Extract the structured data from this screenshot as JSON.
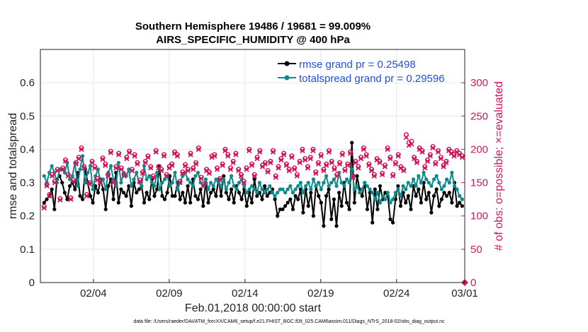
{
  "title_line1": "Southern Hemisphere 19486 / 19681 = 99.009%",
  "title_line2": "AIRS_SPECIFIC_HUMIDITY @ 400 hPa",
  "xlabel": "Feb.01,2018 00:00:00 start",
  "ylabel_left": "rmse and totalspread",
  "ylabel_right": "# of obs: o=possible; ×=evaluated",
  "footer": "data file: /Users/raeder/DAI/ATM_forcXX/CAM6_setup/f.e21.FHIST_BGC.f09_025.CAM6assim.011/Diags_NTrS_2018-02/obs_diag_output.nc",
  "colors": {
    "rmse": "#000000",
    "spread": "#0e8a8a",
    "obs": "#d4145a",
    "legend_text": "#1f4fe0"
  },
  "chart_data": {
    "type": "line",
    "x_unit": "day of Feb 2018 (6-hourly)",
    "xlim": [
      0,
      28
    ],
    "ylim": [
      0,
      0.7
    ],
    "ylim_right": [
      0,
      350
    ],
    "x_ticks": [
      {
        "x": 3.5,
        "label": "02/04"
      },
      {
        "x": 8.5,
        "label": "02/09"
      },
      {
        "x": 13.5,
        "label": "02/14"
      },
      {
        "x": 18.5,
        "label": "02/19"
      },
      {
        "x": 23.5,
        "label": "02/24"
      },
      {
        "x": 28.0,
        "label": "03/01"
      }
    ],
    "y_ticks": [
      "0",
      "0.1",
      "0.2",
      "0.3",
      "0.4",
      "0.5",
      "0.6"
    ],
    "y_tick_values": [
      0,
      0.1,
      0.2,
      0.3,
      0.4,
      0.5,
      0.6
    ],
    "y_right_ticks": [
      "0",
      "50",
      "100",
      "150",
      "200",
      "250",
      "300"
    ],
    "y_right_tick_values": [
      0,
      50,
      100,
      150,
      200,
      250,
      300
    ],
    "grid": true,
    "legend_position": "top-right",
    "series": [
      {
        "name": "rmse grand pr = 0.25498",
        "axis": "left",
        "values": [
          0.24,
          0.25,
          0.26,
          0.28,
          0.22,
          0.31,
          0.32,
          0.3,
          0.27,
          0.25,
          0.29,
          0.3,
          0.28,
          0.33,
          0.26,
          0.25,
          0.34,
          0.3,
          0.26,
          0.24,
          0.29,
          0.27,
          0.31,
          0.28,
          0.22,
          0.29,
          0.31,
          0.25,
          0.33,
          0.24,
          0.28,
          0.27,
          0.26,
          0.29,
          0.23,
          0.3,
          0.27,
          0.28,
          0.29,
          0.24,
          0.27,
          0.25,
          0.31,
          0.26,
          0.28,
          0.35,
          0.26,
          0.25,
          0.27,
          0.32,
          0.26,
          0.26,
          0.3,
          0.25,
          0.27,
          0.24,
          0.29,
          0.24,
          0.31,
          0.26,
          0.25,
          0.28,
          0.23,
          0.3,
          0.24,
          0.27,
          0.28,
          0.26,
          0.31,
          0.26,
          0.32,
          0.27,
          0.25,
          0.28,
          0.24,
          0.29,
          0.27,
          0.25,
          0.28,
          0.23,
          0.27,
          0.24,
          0.31,
          0.26,
          0.27,
          0.25,
          0.29,
          0.26,
          0.27,
          0.28,
          0.25,
          0.2,
          0.22,
          0.22,
          0.23,
          0.24,
          0.25,
          0.22,
          0.26,
          0.25,
          0.28,
          0.21,
          0.28,
          0.23,
          0.27,
          0.2,
          0.29,
          0.26,
          0.24,
          0.17,
          0.26,
          0.28,
          0.19,
          0.25,
          0.17,
          0.27,
          0.23,
          0.3,
          0.24,
          0.22,
          0.42,
          0.24,
          0.32,
          0.28,
          0.26,
          0.3,
          0.22,
          0.27,
          0.18,
          0.28,
          0.22,
          0.29,
          0.25,
          0.27,
          0.26,
          0.19,
          0.18,
          0.25,
          0.29,
          0.23,
          0.27,
          0.24,
          0.26,
          0.22,
          0.29,
          0.26,
          0.28,
          0.24,
          0.3,
          0.25,
          0.27,
          0.21,
          0.26,
          0.28,
          0.23,
          0.25,
          0.27,
          0.26,
          0.27,
          0.24,
          0.3,
          0.23,
          0.24,
          0.23
        ],
        "color": "#000000"
      },
      {
        "name": "totalspread grand pr = 0.29596",
        "axis": "left",
        "values": [
          0.32,
          0.3,
          0.33,
          0.35,
          0.33,
          0.3,
          0.34,
          0.34,
          0.33,
          0.36,
          0.31,
          0.32,
          0.36,
          0.29,
          0.34,
          0.38,
          0.3,
          0.33,
          0.35,
          0.28,
          0.32,
          0.34,
          0.3,
          0.31,
          0.28,
          0.33,
          0.35,
          0.31,
          0.29,
          0.36,
          0.3,
          0.33,
          0.32,
          0.34,
          0.29,
          0.31,
          0.33,
          0.3,
          0.29,
          0.35,
          0.31,
          0.32,
          0.3,
          0.29,
          0.33,
          0.28,
          0.3,
          0.31,
          0.32,
          0.29,
          0.3,
          0.33,
          0.28,
          0.3,
          0.32,
          0.33,
          0.31,
          0.3,
          0.29,
          0.32,
          0.33,
          0.3,
          0.29,
          0.31,
          0.28,
          0.3,
          0.29,
          0.31,
          0.3,
          0.29,
          0.31,
          0.28,
          0.3,
          0.32,
          0.29,
          0.28,
          0.3,
          0.31,
          0.29,
          0.27,
          0.28,
          0.29,
          0.28,
          0.27,
          0.3,
          0.28,
          0.27,
          0.28,
          0.29,
          0.27,
          0.26,
          0.27,
          0.28,
          0.28,
          0.27,
          0.28,
          0.29,
          0.27,
          0.28,
          0.29,
          0.3,
          0.27,
          0.29,
          0.3,
          0.28,
          0.31,
          0.29,
          0.3,
          0.28,
          0.3,
          0.32,
          0.29,
          0.3,
          0.31,
          0.29,
          0.33,
          0.3,
          0.29,
          0.31,
          0.3,
          0.34,
          0.28,
          0.29,
          0.27,
          0.28,
          0.3,
          0.29,
          0.28,
          0.27,
          0.25,
          0.27,
          0.24,
          0.26,
          0.25,
          0.27,
          0.24,
          0.25,
          0.27,
          0.28,
          0.26,
          0.29,
          0.28,
          0.3,
          0.29,
          0.31,
          0.29,
          0.32,
          0.3,
          0.33,
          0.31,
          0.3,
          0.29,
          0.31,
          0.32,
          0.3,
          0.28,
          0.29,
          0.31,
          0.3,
          0.33,
          0.29,
          0.28,
          0.26,
          0.25
        ],
        "color": "#0e8a8a"
      },
      {
        "name": "",
        "axis": "right",
        "marker": "o",
        "values": [
          112,
          145,
          130,
          160,
          150,
          168,
          124,
          170,
          182,
          160,
          125,
          152,
          178,
          186,
          200,
          172,
          130,
          148,
          180,
          172,
          154,
          150,
          185,
          176,
          160,
          195,
          150,
          172,
          192,
          170,
          160,
          186,
          195,
          168,
          190,
          178,
          152,
          164,
          180,
          188,
          172,
          158,
          196,
          172,
          168,
          190,
          160,
          172,
          176,
          194,
          190,
          150,
          164,
          175,
          168,
          192,
          170,
          178,
          200,
          156,
          146,
          168,
          164,
          188,
          190,
          170,
          154,
          176,
          198,
          190,
          170,
          180,
          192,
          168,
          160,
          150,
          170,
          198,
          176,
          160,
          186,
          196,
          174,
          178,
          166,
          180,
          196,
          158,
          172,
          184,
          192,
          176,
          168,
          188,
          170,
          160,
          180,
          198,
          184,
          172,
          186,
          198,
          164,
          178,
          190,
          168,
          176,
          196,
          180,
          170,
          160,
          178,
          192,
          168,
          176,
          194,
          158,
          180,
          172,
          186,
          200,
          190,
          176,
          168,
          160,
          184,
          180,
          162,
          174,
          200,
          186,
          160,
          178,
          190,
          172,
          168,
          220,
          208,
          210,
          186,
          180,
          200,
          196,
          172,
          182,
          190,
          202,
          178,
          196,
          186,
          174,
          180,
          198,
          194,
          190,
          196,
          192,
          188
        ],
        "color": "#d4145a"
      },
      {
        "name": "",
        "axis": "right",
        "marker": "x",
        "values": [
          112,
          145,
          130,
          160,
          150,
          168,
          124,
          170,
          182,
          160,
          125,
          152,
          178,
          186,
          200,
          172,
          130,
          148,
          180,
          172,
          154,
          150,
          185,
          176,
          160,
          195,
          150,
          172,
          192,
          170,
          160,
          186,
          195,
          168,
          190,
          178,
          152,
          164,
          180,
          188,
          172,
          158,
          196,
          172,
          168,
          190,
          160,
          172,
          176,
          194,
          190,
          150,
          164,
          175,
          168,
          192,
          170,
          178,
          200,
          156,
          146,
          168,
          164,
          188,
          190,
          170,
          154,
          176,
          198,
          190,
          170,
          180,
          192,
          168,
          160,
          150,
          170,
          198,
          176,
          160,
          186,
          196,
          174,
          178,
          166,
          180,
          196,
          158,
          172,
          184,
          192,
          176,
          168,
          188,
          170,
          160,
          180,
          198,
          184,
          172,
          186,
          198,
          164,
          178,
          190,
          168,
          176,
          196,
          180,
          170,
          160,
          178,
          192,
          168,
          176,
          194,
          158,
          180,
          172,
          186,
          200,
          190,
          176,
          168,
          160,
          184,
          180,
          162,
          174,
          200,
          186,
          160,
          178,
          190,
          172,
          168,
          218,
          206,
          208,
          186,
          180,
          200,
          196,
          172,
          182,
          190,
          202,
          178,
          196,
          186,
          174,
          180,
          198,
          194,
          190,
          196,
          192,
          188
        ],
        "color": "#d4145a"
      }
    ],
    "legend": [
      {
        "label": "rmse grand pr = 0.25498",
        "color": "#000000"
      },
      {
        "label": "totalspread grand pr = 0.29596",
        "color": "#0e8a8a"
      }
    ]
  }
}
